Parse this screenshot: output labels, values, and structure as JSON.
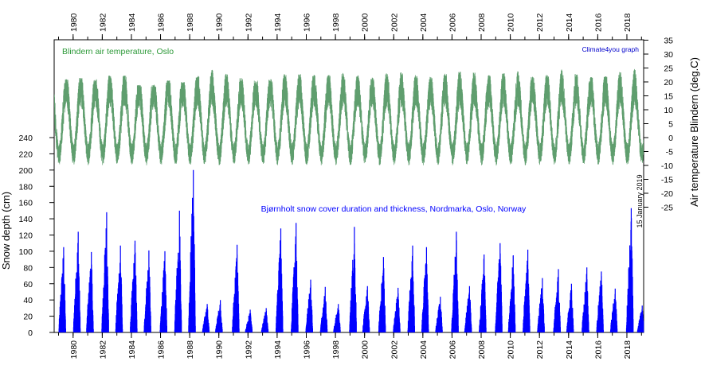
{
  "chart_data": {
    "type": "area",
    "colors": {
      "temperature": "#5f9e6e",
      "snow": "#0000ff",
      "temperature_title": "#2e9a3a",
      "credit": "#0000cc",
      "axis": "#000000"
    },
    "texts": {
      "temperature_title": "Blindern air temperature, Oslo",
      "snow_title": "Bjørnholt snow cover duration and thickness, Nordmarka, Oslo, Norway",
      "credit": "Climate4you graph",
      "date_stamp": "15 January 2019",
      "left_axis_label": "Snow depth (cm)",
      "right_axis_label": "Air temperature Blindern (deg.C)"
    },
    "x_axis": {
      "range": [
        1978.7,
        1990.0
      ],
      "full_range": [
        1978.7,
        2019.15
      ],
      "ticks": [
        "1980",
        "1982",
        "1984",
        "1986",
        "1988",
        "1990",
        "1992",
        "1994",
        "1996",
        "1998",
        "2000",
        "2002",
        "2004",
        "2006",
        "2008",
        "2010",
        "2012",
        "2014",
        "2016",
        "2018"
      ],
      "tick_values": [
        1980,
        1982,
        1984,
        1986,
        1988,
        1990,
        1992,
        1994,
        1996,
        1998,
        2000,
        2002,
        2004,
        2006,
        2008,
        2010,
        2012,
        2014,
        2016,
        2018
      ],
      "placement": "top and bottom"
    },
    "left_axis": {
      "label": "Snow depth (cm)",
      "range": [
        0,
        240
      ],
      "ticks": [
        "0",
        "20",
        "40",
        "60",
        "80",
        "100",
        "120",
        "140",
        "160",
        "180",
        "200",
        "220",
        "240"
      ],
      "tick_values": [
        0,
        20,
        40,
        60,
        80,
        100,
        120,
        140,
        160,
        180,
        200,
        220,
        240
      ]
    },
    "right_axis": {
      "label": "Air temperature Blindern (deg.C)",
      "range": [
        -25,
        35
      ],
      "ticks": [
        "-25",
        "-20",
        "-15",
        "-10",
        "-5",
        "0",
        "5",
        "10",
        "15",
        "20",
        "25",
        "30",
        "35"
      ],
      "tick_values": [
        -25,
        -20,
        -15,
        -10,
        -5,
        0,
        5,
        10,
        15,
        20,
        25,
        30,
        35
      ]
    },
    "temperature_series": {
      "name": "Blindern air temperature, Oslo",
      "annual_max": [
        [
          1980,
          21
        ],
        [
          1981,
          22
        ],
        [
          1982,
          20
        ],
        [
          1983,
          25
        ],
        [
          1984,
          20
        ],
        [
          1985,
          18
        ],
        [
          1986,
          20
        ],
        [
          1987,
          21
        ],
        [
          1988,
          19
        ],
        [
          1989,
          25
        ],
        [
          1990,
          24
        ],
        [
          1991,
          22
        ],
        [
          1992,
          21
        ],
        [
          1993,
          20
        ],
        [
          1994,
          22
        ],
        [
          1995,
          24
        ],
        [
          1996,
          22
        ],
        [
          1997,
          23
        ],
        [
          1998,
          22
        ],
        [
          1999,
          24
        ],
        [
          2000,
          21
        ],
        [
          2001,
          22
        ],
        [
          2002,
          24
        ],
        [
          2003,
          23
        ],
        [
          2004,
          22
        ],
        [
          2005,
          22
        ],
        [
          2006,
          24
        ],
        [
          2007,
          24
        ],
        [
          2008,
          23
        ],
        [
          2009,
          22
        ],
        [
          2010,
          25
        ],
        [
          2011,
          23
        ],
        [
          2012,
          21
        ],
        [
          2013,
          25
        ],
        [
          2014,
          24
        ],
        [
          2015,
          22
        ],
        [
          2016,
          22
        ],
        [
          2017,
          22
        ],
        [
          2018,
          25
        ]
      ],
      "annual_min": [
        [
          1979,
          -16
        ],
        [
          1980,
          -13
        ],
        [
          1981,
          -14
        ],
        [
          1982,
          -18
        ],
        [
          1983,
          -14
        ],
        [
          1984,
          -15
        ],
        [
          1985,
          -19
        ],
        [
          1986,
          -17
        ],
        [
          1987,
          -19
        ],
        [
          1988,
          -15
        ],
        [
          1989,
          -14
        ],
        [
          1990,
          -12
        ],
        [
          1991,
          -12
        ],
        [
          1992,
          -12
        ],
        [
          1993,
          -13
        ],
        [
          1994,
          -15
        ],
        [
          1995,
          -13
        ],
        [
          1996,
          -14
        ],
        [
          1997,
          -15
        ],
        [
          1998,
          -12
        ],
        [
          1999,
          -14
        ],
        [
          2000,
          -13
        ],
        [
          2001,
          -15
        ],
        [
          2002,
          -12
        ],
        [
          2003,
          -16
        ],
        [
          2004,
          -12
        ],
        [
          2005,
          -13
        ],
        [
          2006,
          -14
        ],
        [
          2007,
          -12
        ],
        [
          2008,
          -13
        ],
        [
          2009,
          -13
        ],
        [
          2010,
          -17
        ],
        [
          2011,
          -16
        ],
        [
          2012,
          -13
        ],
        [
          2013,
          -14
        ],
        [
          2014,
          -13
        ],
        [
          2015,
          -11
        ],
        [
          2016,
          -14
        ],
        [
          2017,
          -11
        ],
        [
          2018,
          -12
        ],
        [
          2019,
          -10
        ]
      ]
    },
    "snow_series": {
      "name": "Bjørnholt snow cover duration and thickness, Nordmarka, Oslo, Norway",
      "winter_peaks": [
        [
          1979.35,
          105
        ],
        [
          1980.35,
          124
        ],
        [
          1981.25,
          99
        ],
        [
          1982.3,
          148
        ],
        [
          1983.25,
          107
        ],
        [
          1984.25,
          113
        ],
        [
          1985.2,
          101
        ],
        [
          1986.3,
          100
        ],
        [
          1987.3,
          150
        ],
        [
          1988.25,
          200
        ],
        [
          1989.2,
          35
        ],
        [
          1990.1,
          40
        ],
        [
          1991.25,
          108
        ],
        [
          1992.15,
          28
        ],
        [
          1993.25,
          30
        ],
        [
          1994.25,
          128
        ],
        [
          1995.3,
          135
        ],
        [
          1996.3,
          65
        ],
        [
          1997.3,
          56
        ],
        [
          1998.2,
          35
        ],
        [
          1999.3,
          130
        ],
        [
          2000.2,
          57
        ],
        [
          2001.3,
          93
        ],
        [
          2002.3,
          55
        ],
        [
          2003.3,
          107
        ],
        [
          2004.25,
          105
        ],
        [
          2005.2,
          44
        ],
        [
          2006.3,
          124
        ],
        [
          2007.2,
          57
        ],
        [
          2008.2,
          96
        ],
        [
          2009.3,
          110
        ],
        [
          2010.2,
          95
        ],
        [
          2011.2,
          102
        ],
        [
          2012.2,
          67
        ],
        [
          2013.3,
          78
        ],
        [
          2014.2,
          60
        ],
        [
          2015.25,
          80
        ],
        [
          2016.25,
          75
        ],
        [
          2017.2,
          54
        ],
        [
          2018.3,
          153
        ],
        [
          2019.05,
          33
        ]
      ]
    }
  }
}
